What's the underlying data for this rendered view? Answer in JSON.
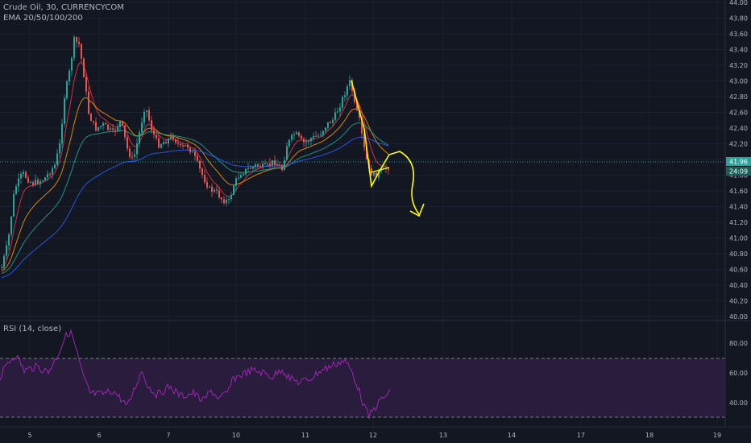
{
  "legend": {
    "symbol": "Crude Oil, 30, CURRENCYCOM",
    "ema": "EMA 20/50/100/200",
    "rsi": "RSI (14, close)"
  },
  "price_axis": {
    "ticks": [
      "44.00",
      "43.80",
      "43.60",
      "43.40",
      "43.20",
      "43.00",
      "42.80",
      "42.60",
      "42.40",
      "42.20",
      "42.00",
      "41.80",
      "41.60",
      "41.40",
      "41.20",
      "41.00",
      "40.80",
      "40.60",
      "40.40",
      "40.20",
      "40.00"
    ],
    "last_price": "41.96",
    "countdown": "24:09"
  },
  "rsi_axis": {
    "ticks": [
      "80.00",
      "60.00",
      "40.00"
    ]
  },
  "time_axis": {
    "ticks": [
      "5",
      "6",
      "7",
      "10",
      "11",
      "12",
      "13",
      "14",
      "17",
      "18",
      "19"
    ]
  },
  "colors": {
    "background": "#131722",
    "up": "#26a69a",
    "down": "#ef5350",
    "price_line": "#26a69a",
    "rsi_line": "#9c27b0",
    "rsi_band": "#2a1c3d",
    "annotation": "#ffff00",
    "ema20": "#f23645",
    "ema50": "#ff9800",
    "ema100": "#26a69a",
    "ema200": "#2962ff"
  }
}
